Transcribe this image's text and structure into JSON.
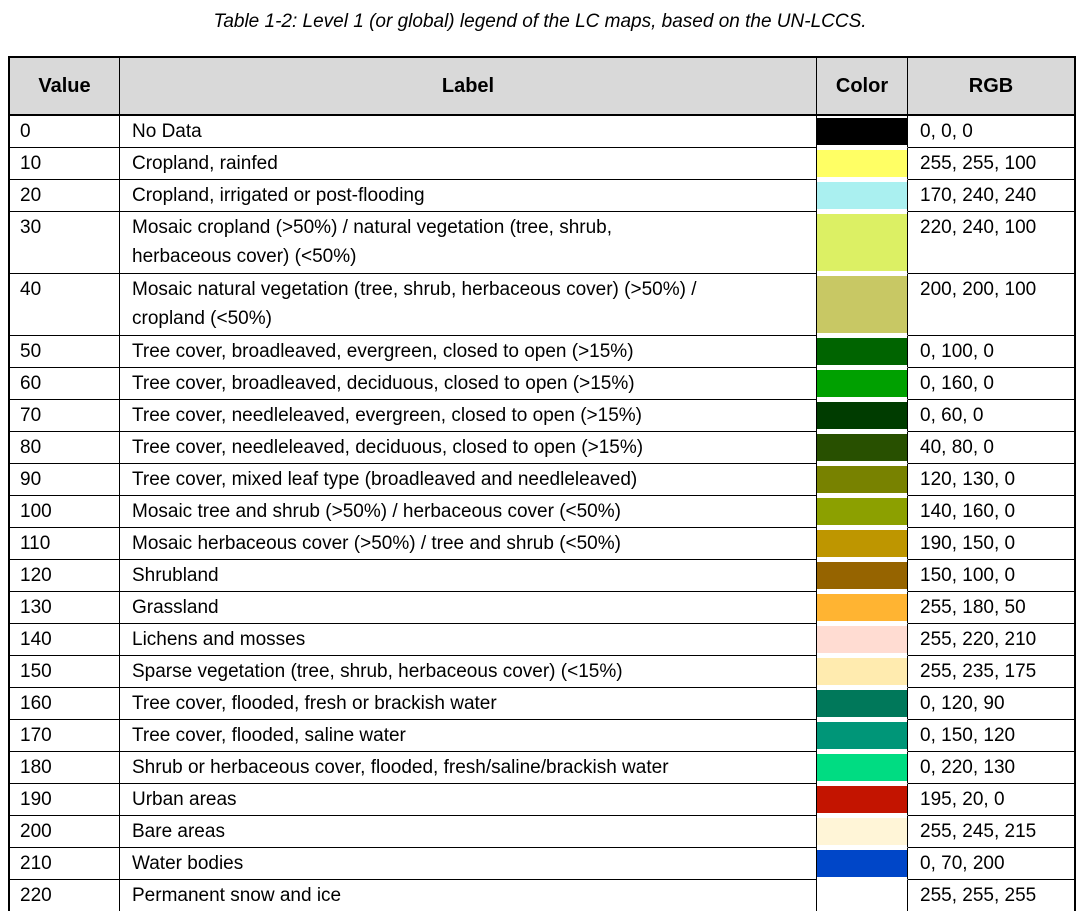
{
  "caption": "Table 1-2: Level 1 (or global) legend of the LC maps, based on the UN-LCCS.",
  "styles": {
    "header_bg": "#d9d9d9",
    "border_color": "#000000"
  },
  "table": {
    "headers": [
      "Value",
      "Label",
      "Color",
      "RGB"
    ],
    "rows": [
      {
        "value": "0",
        "label": "No Data",
        "color": "#000000",
        "rgb": "0, 0, 0"
      },
      {
        "value": "10",
        "label": "Cropland, rainfed",
        "color": "#ffff64",
        "rgb": "255, 255, 100"
      },
      {
        "value": "20",
        "label": "Cropland, irrigated or post-flooding",
        "color": "#aaf0f0",
        "rgb": "170, 240, 240"
      },
      {
        "value": "30",
        "label": "Mosaic cropland (>50%) / natural vegetation (tree, shrub,\nherbaceous cover) (<50%)",
        "color": "#dcf064",
        "rgb": "220, 240, 100",
        "tall": true
      },
      {
        "value": "40",
        "label": "Mosaic natural vegetation (tree, shrub, herbaceous cover) (>50%) /\ncropland (<50%)",
        "color": "#c8c864",
        "rgb": "200, 200, 100",
        "tall": true
      },
      {
        "value": "50",
        "label": "Tree cover, broadleaved, evergreen, closed to open (>15%)",
        "color": "#006400",
        "rgb": "0, 100, 0"
      },
      {
        "value": "60",
        "label": "Tree cover, broadleaved, deciduous, closed to open (>15%)",
        "color": "#00a000",
        "rgb": "0, 160, 0"
      },
      {
        "value": "70",
        "label": "Tree cover, needleleaved, evergreen, closed to open (>15%)",
        "color": "#003c00",
        "rgb": "0, 60, 0"
      },
      {
        "value": "80",
        "label": "Tree cover, needleleaved, deciduous, closed to open (>15%)",
        "color": "#285000",
        "rgb": "40, 80, 0"
      },
      {
        "value": "90",
        "label": "Tree cover, mixed leaf type (broadleaved and needleleaved)",
        "color": "#788200",
        "rgb": "120, 130, 0"
      },
      {
        "value": "100",
        "label": "Mosaic tree and shrub (>50%) / herbaceous cover (<50%)",
        "color": "#8ca000",
        "rgb": "140, 160, 0"
      },
      {
        "value": "110",
        "label": "Mosaic herbaceous cover (>50%) / tree and shrub (<50%)",
        "color": "#be9600",
        "rgb": "190, 150, 0"
      },
      {
        "value": "120",
        "label": "Shrubland",
        "color": "#966400",
        "rgb": "150, 100, 0"
      },
      {
        "value": "130",
        "label": "Grassland",
        "color": "#ffb432",
        "rgb": "255, 180, 50"
      },
      {
        "value": "140",
        "label": "Lichens and mosses",
        "color": "#ffdcd2",
        "rgb": "255, 220, 210"
      },
      {
        "value": "150",
        "label": "Sparse vegetation (tree, shrub, herbaceous cover) (<15%)",
        "color": "#ffebaf",
        "rgb": "255, 235, 175"
      },
      {
        "value": "160",
        "label": "Tree cover, flooded, fresh or brackish water",
        "color": "#00785a",
        "rgb": "0, 120, 90"
      },
      {
        "value": "170",
        "label": "Tree cover, flooded, saline water",
        "color": "#009678",
        "rgb": "0, 150, 120"
      },
      {
        "value": "180",
        "label": "Shrub or herbaceous cover, flooded, fresh/saline/brackish water",
        "color": "#00dc82",
        "rgb": "0, 220, 130"
      },
      {
        "value": "190",
        "label": "Urban areas",
        "color": "#c31400",
        "rgb": "195, 20, 0"
      },
      {
        "value": "200",
        "label": "Bare areas",
        "color": "#fff5d7",
        "rgb": "255, 245, 215"
      },
      {
        "value": "210",
        "label": "Water bodies",
        "color": "#0046c8",
        "rgb": "0, 70, 200"
      },
      {
        "value": "220",
        "label": "Permanent snow and ice",
        "color": "#ffffff",
        "rgb": "255, 255, 255"
      }
    ]
  }
}
